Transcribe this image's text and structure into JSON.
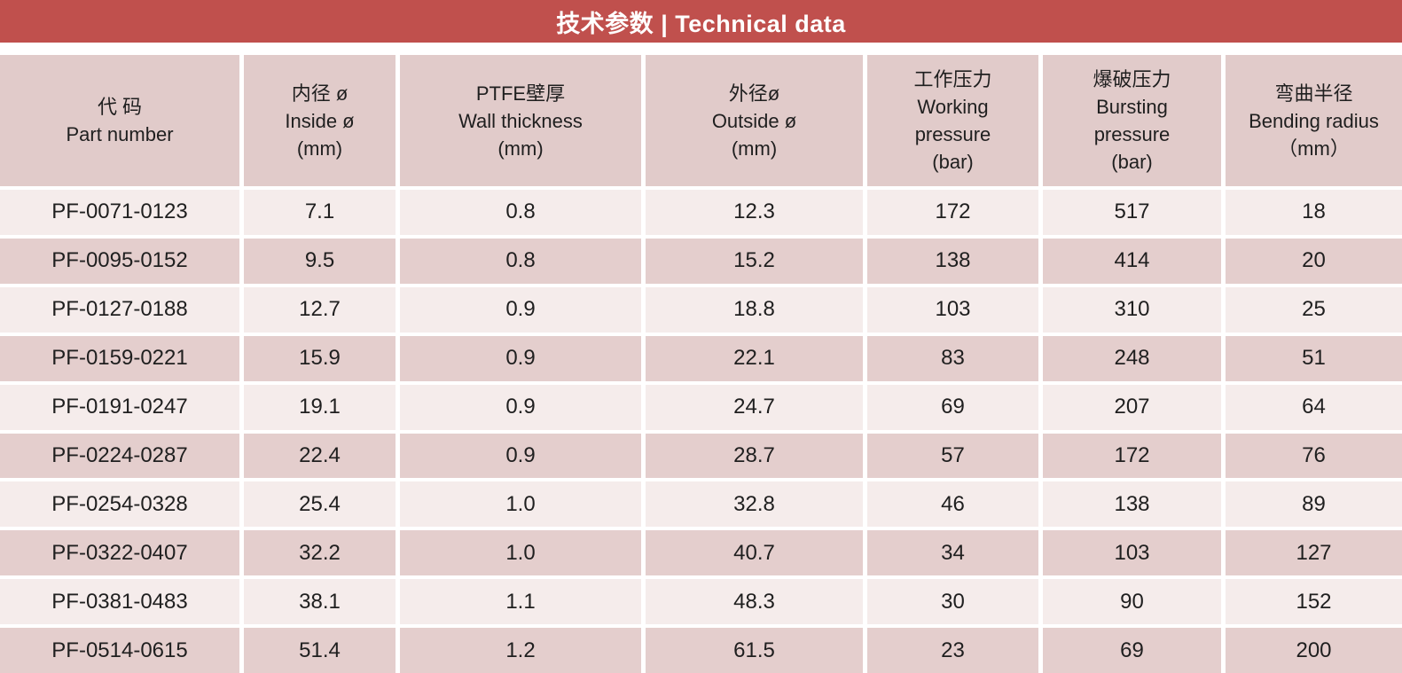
{
  "banner": {
    "title": "技术参数 | Technical data"
  },
  "colors": {
    "banner": "#c0504d",
    "header_bg": "#e1cbca",
    "row_light": "#f5eceb",
    "row_dark": "#e4cecd",
    "text": "#1f1f1f"
  },
  "table": {
    "headers": [
      "代 码\nPart number",
      "内径 ø\nInside ø\n(mm)",
      "PTFE壁厚\nWall thickness\n(mm)",
      "外径ø\nOutside ø\n(mm)",
      "工作压力\nWorking\npressure\n(bar)",
      "爆破压力\nBursting\npressure\n(bar)",
      "弯曲半径\nBending radius\n（mm）"
    ],
    "rows": [
      [
        "PF-0071-0123",
        "7.1",
        "0.8",
        "12.3",
        "172",
        "517",
        "18"
      ],
      [
        "PF-0095-0152",
        "9.5",
        "0.8",
        "15.2",
        "138",
        "414",
        "20"
      ],
      [
        "PF-0127-0188",
        "12.7",
        "0.9",
        "18.8",
        "103",
        "310",
        "25"
      ],
      [
        "PF-0159-0221",
        "15.9",
        "0.9",
        "22.1",
        "83",
        "248",
        "51"
      ],
      [
        "PF-0191-0247",
        "19.1",
        "0.9",
        "24.7",
        "69",
        "207",
        "64"
      ],
      [
        "PF-0224-0287",
        "22.4",
        "0.9",
        "28.7",
        "57",
        "172",
        "76"
      ],
      [
        "PF-0254-0328",
        "25.4",
        "1.0",
        "32.8",
        "46",
        "138",
        "89"
      ],
      [
        "PF-0322-0407",
        "32.2",
        "1.0",
        "40.7",
        "34",
        "103",
        "127"
      ],
      [
        "PF-0381-0483",
        "38.1",
        "1.1",
        "48.3",
        "30",
        "90",
        "152"
      ],
      [
        "PF-0514-0615",
        "51.4",
        "1.2",
        "61.5",
        "23",
        "69",
        "200"
      ]
    ]
  }
}
